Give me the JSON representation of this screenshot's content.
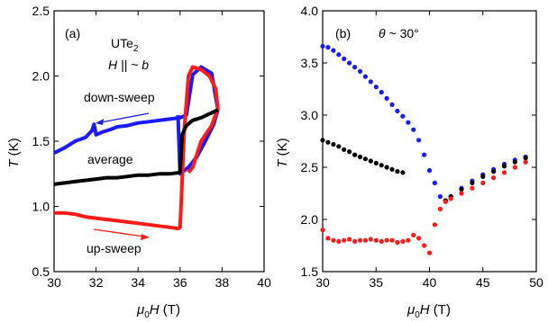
{
  "colors": {
    "down": "#1a1aff",
    "up": "#ff1a1a",
    "avg": "#000000"
  },
  "chart_data": [
    {
      "type": "line",
      "panel_label": "(a)",
      "xlabel": "μ0H (T)",
      "ylabel": "T (K)",
      "xlim": [
        30,
        40
      ],
      "ylim": [
        0.5,
        2.5
      ],
      "xticks": [
        "30",
        "32",
        "34",
        "36",
        "38",
        "40"
      ],
      "yticks": [
        "0.5",
        "1.0",
        "1.5",
        "2.0",
        "2.5"
      ],
      "annotations": {
        "material": "UTe2",
        "field_direction": "H || ~ b",
        "down_sweep": "down-sweep",
        "average": "average",
        "up_sweep": "up-sweep"
      },
      "series": [
        {
          "name": "down-sweep",
          "color": "blue",
          "x": [
            30.0,
            30.5,
            31.0,
            31.5,
            31.8,
            31.9,
            32.0,
            32.3,
            32.7,
            33.0,
            33.5,
            34.0,
            34.5,
            35.0,
            35.5,
            36.0,
            36.3,
            36.6,
            37.0,
            37.5,
            37.8,
            37.6,
            37.2,
            36.8,
            36.4,
            36.0,
            35.9
          ],
          "y": [
            1.41,
            1.45,
            1.5,
            1.53,
            1.58,
            1.63,
            1.55,
            1.57,
            1.59,
            1.61,
            1.62,
            1.64,
            1.65,
            1.66,
            1.67,
            1.68,
            1.7,
            2.01,
            2.07,
            2.02,
            1.74,
            1.63,
            1.5,
            1.38,
            1.3,
            1.25,
            1.7
          ]
        },
        {
          "name": "up-sweep",
          "color": "red",
          "x": [
            30.0,
            30.5,
            31.0,
            31.5,
            32.0,
            32.5,
            33.0,
            33.5,
            34.0,
            34.5,
            35.0,
            35.5,
            35.9,
            36.0,
            36.1,
            36.2,
            36.3,
            36.4,
            36.6,
            36.8,
            37.0,
            37.4,
            37.7,
            37.8,
            37.5,
            37.0,
            36.6,
            36.4
          ],
          "y": [
            0.95,
            0.95,
            0.94,
            0.92,
            0.91,
            0.9,
            0.89,
            0.88,
            0.87,
            0.86,
            0.85,
            0.84,
            0.83,
            0.84,
            1.2,
            1.6,
            1.8,
            2.0,
            2.07,
            2.06,
            2.05,
            2.0,
            1.9,
            1.75,
            1.62,
            1.5,
            1.3,
            1.26
          ]
        },
        {
          "name": "average",
          "color": "black",
          "x": [
            30.0,
            30.5,
            31.0,
            31.5,
            32.0,
            32.5,
            33.0,
            33.5,
            34.0,
            34.5,
            35.0,
            35.5,
            36.0,
            36.1,
            36.3,
            36.6,
            37.0,
            37.4,
            37.8
          ],
          "y": [
            1.17,
            1.18,
            1.19,
            1.2,
            1.21,
            1.22,
            1.22,
            1.23,
            1.24,
            1.24,
            1.25,
            1.25,
            1.26,
            1.55,
            1.62,
            1.66,
            1.68,
            1.71,
            1.74
          ]
        }
      ]
    },
    {
      "type": "scatter",
      "panel_label": "(b)",
      "xlabel": "μ0H (T)",
      "ylabel": "T (K)",
      "xlim": [
        30,
        50
      ],
      "ylim": [
        1.5,
        4.0
      ],
      "xticks": [
        "30",
        "35",
        "40",
        "45",
        "50"
      ],
      "yticks": [
        "1.5",
        "2.0",
        "2.5",
        "3.0",
        "3.5",
        "4.0"
      ],
      "annotations": {
        "angle": "θ ~ 30°"
      },
      "series": [
        {
          "color": "blue",
          "x": [
            30.0,
            30.5,
            31.0,
            31.5,
            32.0,
            32.5,
            33.0,
            33.5,
            34.0,
            34.5,
            35.0,
            35.5,
            36.0,
            36.5,
            37.0,
            37.5,
            38.0,
            38.5,
            39.0,
            39.5,
            40.0,
            40.5,
            41.0,
            41.5,
            42.0,
            43.0,
            44.0,
            45.0,
            46.0,
            47.0,
            48.0,
            49.0
          ],
          "y": [
            3.66,
            3.65,
            3.62,
            3.58,
            3.54,
            3.5,
            3.46,
            3.42,
            3.37,
            3.32,
            3.27,
            3.22,
            3.16,
            3.1,
            3.04,
            2.99,
            2.93,
            2.86,
            2.76,
            2.62,
            2.47,
            2.35,
            2.22,
            2.18,
            2.22,
            2.3,
            2.37,
            2.43,
            2.48,
            2.53,
            2.57,
            2.6
          ]
        },
        {
          "color": "black",
          "x": [
            30.0,
            30.5,
            31.0,
            31.5,
            32.0,
            32.5,
            33.0,
            33.5,
            34.0,
            34.5,
            35.0,
            35.5,
            36.0,
            36.5,
            37.0,
            37.5,
            41.5,
            42.0,
            43.0,
            44.0,
            45.0,
            46.0,
            47.0,
            48.0,
            49.0
          ],
          "y": [
            2.76,
            2.74,
            2.72,
            2.7,
            2.67,
            2.65,
            2.62,
            2.6,
            2.58,
            2.56,
            2.54,
            2.52,
            2.5,
            2.48,
            2.46,
            2.45,
            2.18,
            2.22,
            2.29,
            2.35,
            2.41,
            2.46,
            2.51,
            2.55,
            2.59
          ]
        },
        {
          "color": "red",
          "x": [
            30.0,
            30.5,
            31.0,
            31.5,
            32.0,
            32.5,
            33.0,
            33.5,
            34.0,
            34.5,
            35.0,
            35.5,
            36.0,
            36.5,
            37.0,
            37.5,
            38.0,
            38.5,
            39.0,
            39.5,
            40.0,
            40.5,
            41.0,
            41.5,
            42.0,
            43.0,
            44.0,
            45.0,
            46.0,
            47.0,
            48.0,
            49.0
          ],
          "y": [
            1.9,
            1.82,
            1.8,
            1.79,
            1.8,
            1.81,
            1.79,
            1.8,
            1.8,
            1.81,
            1.8,
            1.79,
            1.8,
            1.8,
            1.78,
            1.79,
            1.8,
            1.85,
            1.82,
            1.75,
            1.68,
            1.95,
            2.1,
            2.17,
            2.2,
            2.25,
            2.3,
            2.35,
            2.4,
            2.45,
            2.5,
            2.55
          ]
        }
      ]
    }
  ]
}
